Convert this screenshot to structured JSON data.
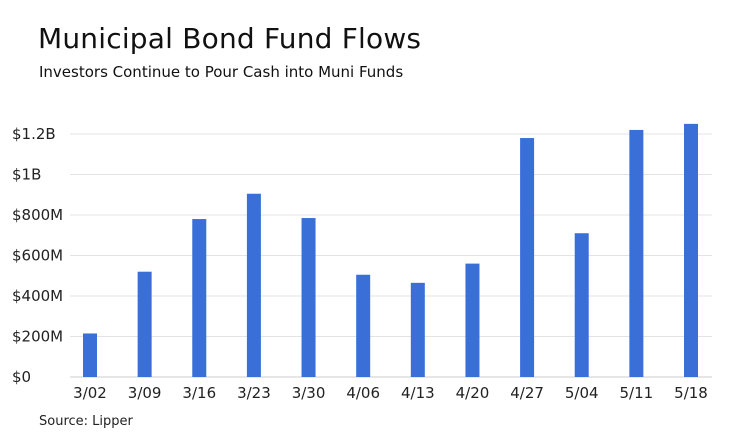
{
  "title": "Municipal Bond Fund Flows",
  "subtitle": "Investors Continue to Pour Cash into Muni Funds",
  "source": "Source: Lipper",
  "chart_data": {
    "type": "bar",
    "title": "Municipal Bond Fund Flows",
    "subtitle": "Investors Continue to Pour Cash into Muni Funds",
    "categories": [
      "3/02",
      "3/09",
      "3/16",
      "3/23",
      "3/30",
      "4/06",
      "4/13",
      "4/20",
      "4/27",
      "5/04",
      "5/11",
      "5/18"
    ],
    "values": [
      215,
      520,
      780,
      905,
      785,
      505,
      465,
      560,
      1180,
      710,
      1220,
      1250
    ],
    "value_units": "millions of dollars",
    "ylim": [
      0,
      1300
    ],
    "y_ticks": [
      0,
      200,
      400,
      600,
      800,
      1000,
      1200
    ],
    "y_tick_labels": [
      "$0",
      "$200M",
      "$400M",
      "$600M",
      "$800M",
      "$1B",
      "$1.2B"
    ],
    "xlabel": "",
    "ylabel": "",
    "grid": true,
    "legend": "none",
    "colors": {
      "bar": "#3a6fd8",
      "grid": "#e3e3e3"
    }
  }
}
